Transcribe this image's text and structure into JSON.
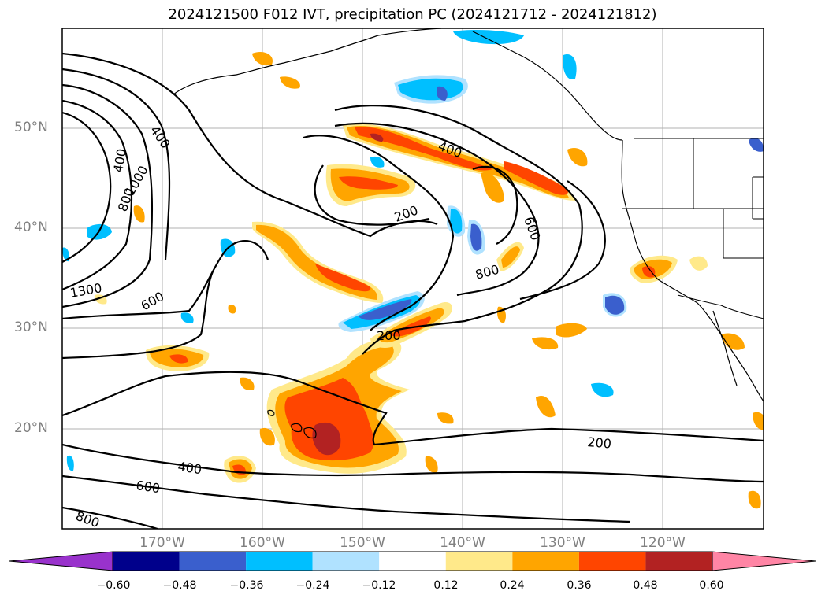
{
  "title": "2024121500 F012 IVT, precipitation PC (2024121712 - 2024121812)",
  "latitude_labels": [
    "50°N",
    "40°N",
    "30°N",
    "20°N"
  ],
  "longitude_labels": [
    "170°W",
    "160°W",
    "150°W",
    "140°W",
    "130°W",
    "120°W"
  ],
  "contour_labels": [
    "400",
    "400",
    "800",
    "1000",
    "1300",
    "600",
    "400",
    "200",
    "600",
    "800",
    "200",
    "200",
    "400",
    "600",
    "800"
  ],
  "colorbar": {
    "ticks": [
      "−0.60",
      "−0.48",
      "−0.36",
      "−0.24",
      "−0.12",
      "0.12",
      "0.24",
      "0.36",
      "0.48",
      "0.60"
    ],
    "colors": [
      "#9932cc",
      "#00008b",
      "#3a5fcd",
      "#00bfff",
      "#b0e2ff",
      "#ffffff",
      "#ffe98a",
      "#ffa500",
      "#ff4500",
      "#b22222",
      "#ff85a5"
    ]
  }
}
